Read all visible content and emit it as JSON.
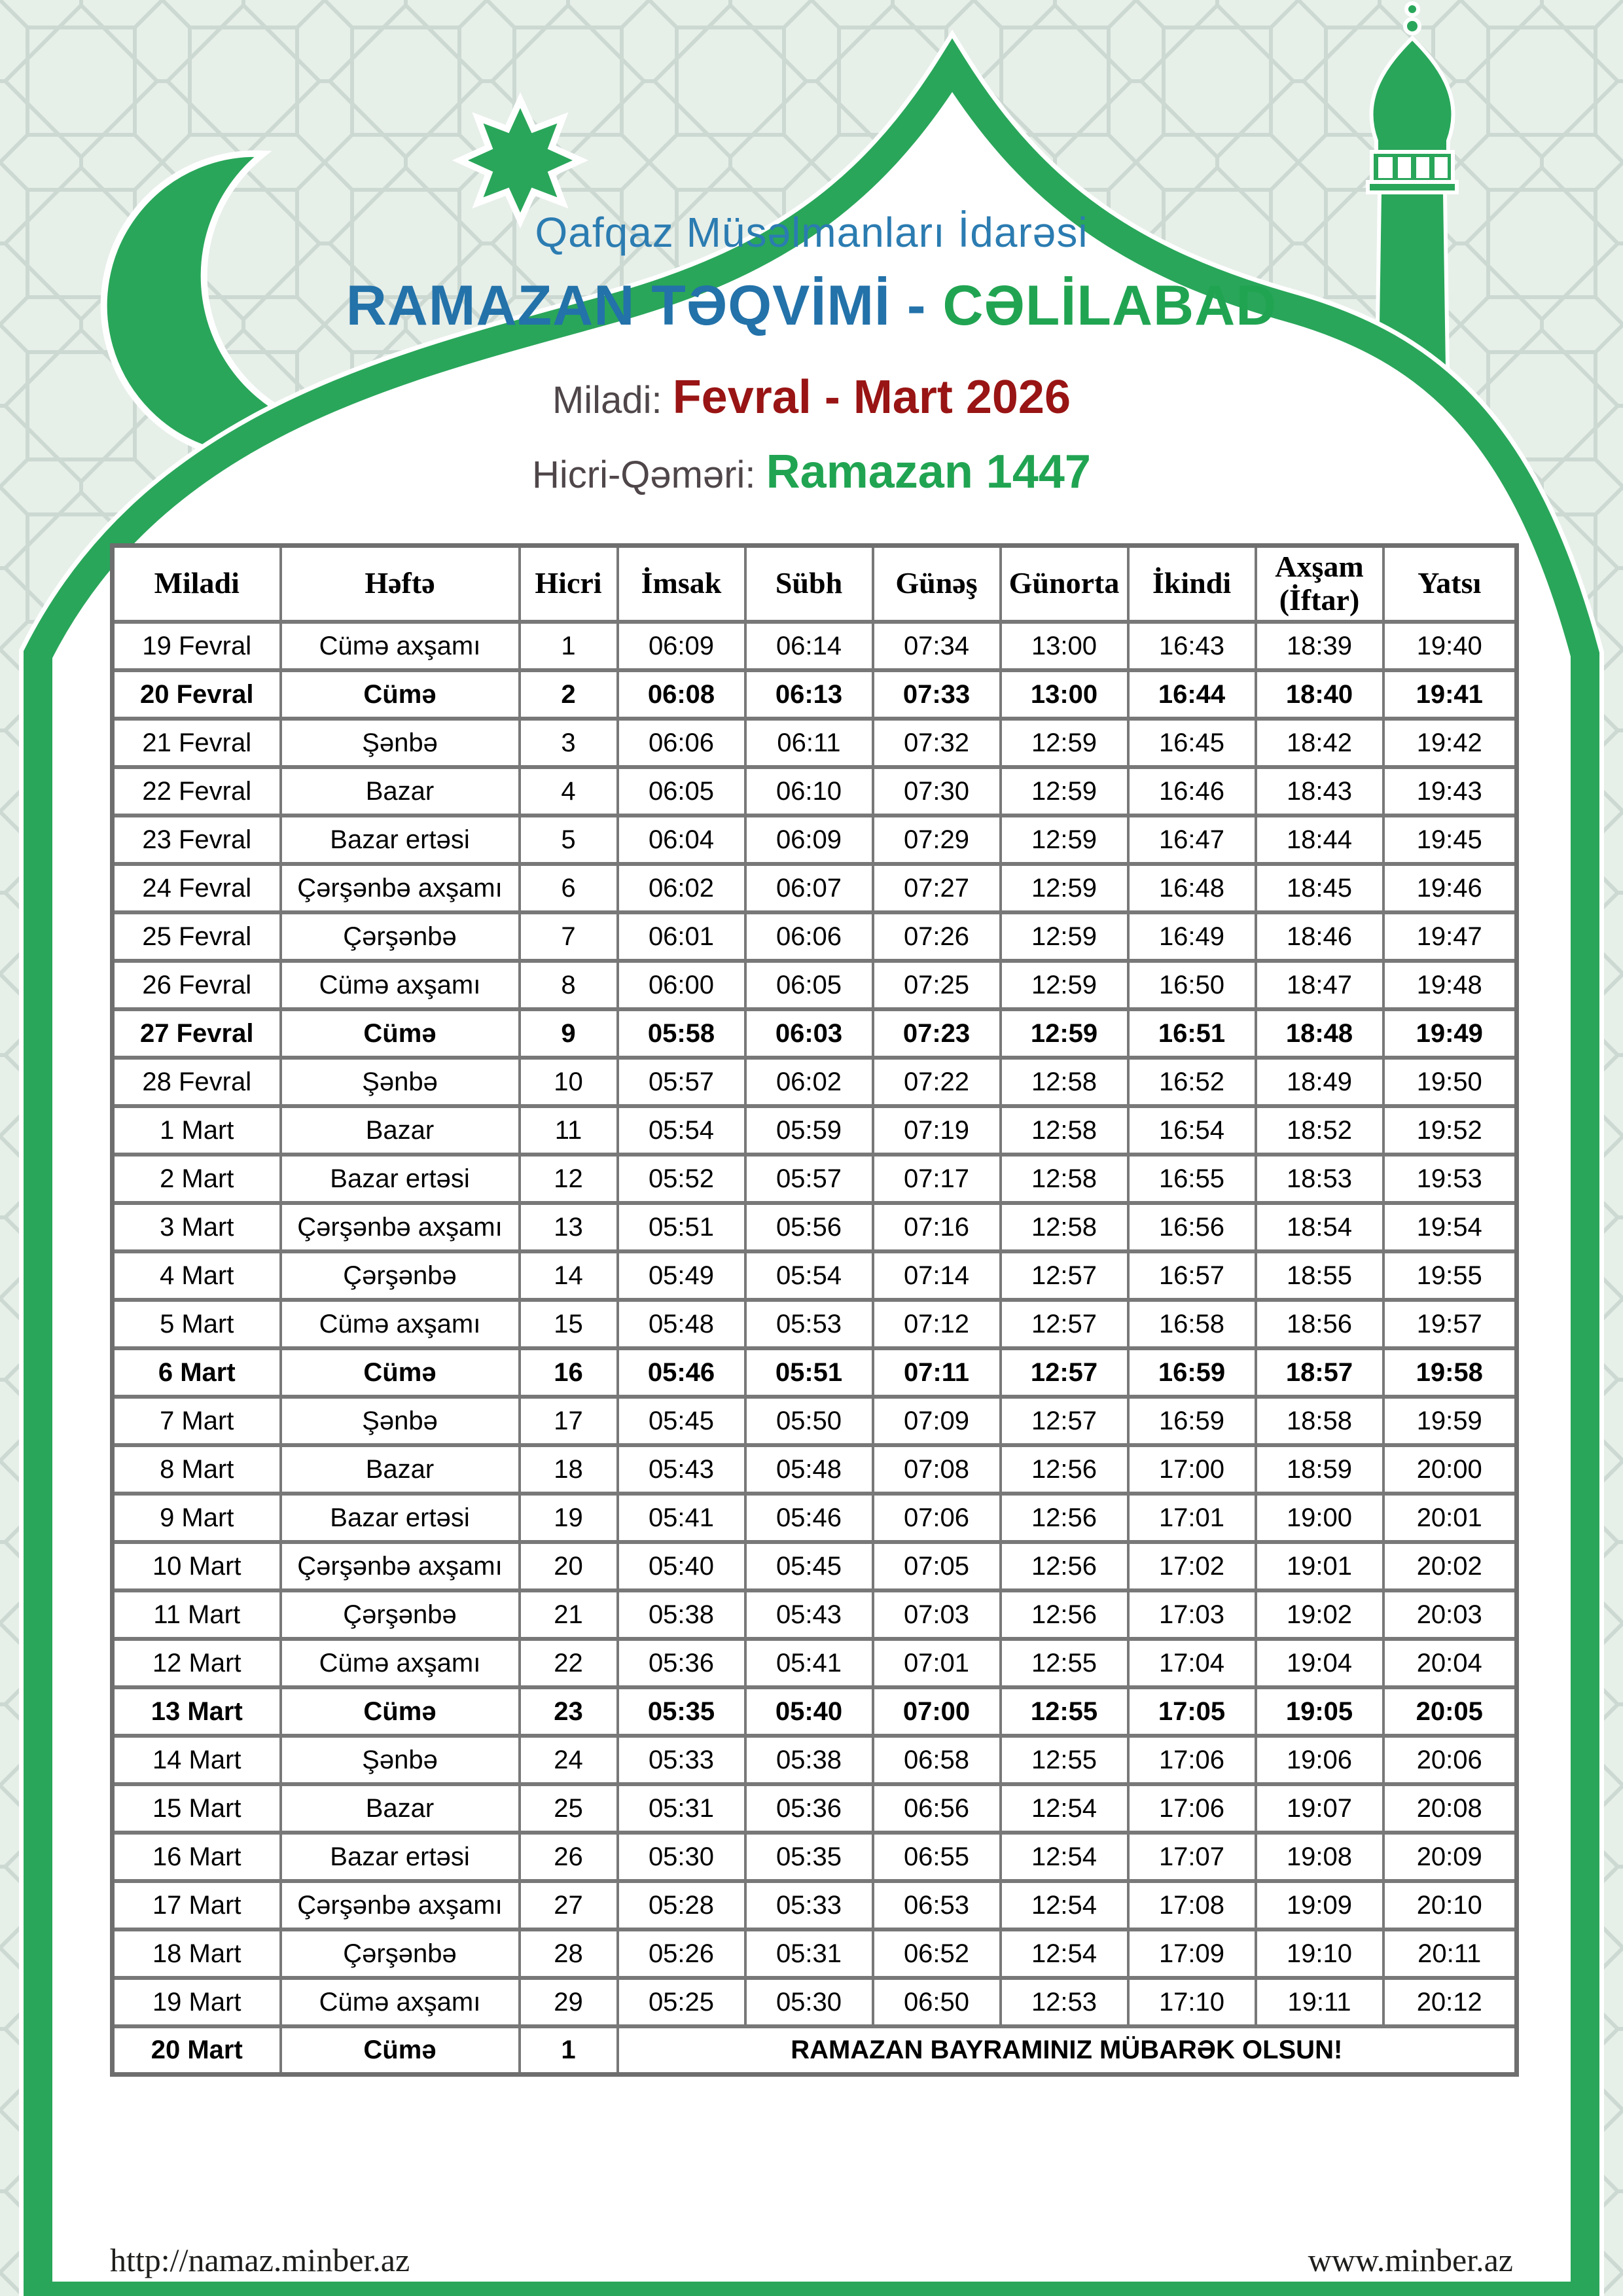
{
  "header": {
    "org": "Qafqaz Müsəlmanları İdarəsi",
    "title_main": "RAMAZAN TƏQVİMİ - ",
    "title_city": "CƏLİLABAD",
    "miladi_label": "Miladi: ",
    "miladi_value": "Fevral - Mart 2026",
    "hicri_label": "Hicri-Qəməri: ",
    "hicri_value": "Ramazan 1447"
  },
  "colors": {
    "accent_green": "#29a65a",
    "row_green": "#9cf49c",
    "row_red": "#f69492",
    "title_blue": "#2372a9",
    "org_blue": "#2b7cb1",
    "date_red": "#991414",
    "label_gray": "#4f464a",
    "table_border_gray": "#787878",
    "pattern_background": "#e7efe9",
    "pattern_lines": "#ccd9d2"
  },
  "decorations": {
    "crescent_icon": "crescent-moon",
    "star_icon": "eight-point-star",
    "minaret_icon": "mosque-minaret",
    "arch": "mosque-dome-arch"
  },
  "table": {
    "columns": [
      "Miladi",
      "Həftə",
      "Hicri",
      "İmsak",
      "Sübh",
      "Günəş",
      "Günorta",
      "İkindi",
      "Axşam\n(İftar)",
      "Yatsı"
    ],
    "rows": [
      {
        "miladi": "19 Fevral",
        "weekday": "Cümə axşamı",
        "hicri": "1",
        "imsak": "06:09",
        "subh": "06:14",
        "gunes": "07:34",
        "gunorta": "13:00",
        "ikindi": "16:43",
        "aksam": "18:39",
        "yatsi": "19:40",
        "highlight": "none"
      },
      {
        "miladi": "20 Fevral",
        "weekday": "Cümə",
        "hicri": "2",
        "imsak": "06:08",
        "subh": "06:13",
        "gunes": "07:33",
        "gunorta": "13:00",
        "ikindi": "16:44",
        "aksam": "18:40",
        "yatsi": "19:41",
        "highlight": "friday"
      },
      {
        "miladi": "21 Fevral",
        "weekday": "Şənbə",
        "hicri": "3",
        "imsak": "06:06",
        "subh": "06:11",
        "gunes": "07:32",
        "gunorta": "12:59",
        "ikindi": "16:45",
        "aksam": "18:42",
        "yatsi": "19:42",
        "highlight": "none"
      },
      {
        "miladi": "22 Fevral",
        "weekday": "Bazar",
        "hicri": "4",
        "imsak": "06:05",
        "subh": "06:10",
        "gunes": "07:30",
        "gunorta": "12:59",
        "ikindi": "16:46",
        "aksam": "18:43",
        "yatsi": "19:43",
        "highlight": "sunday"
      },
      {
        "miladi": "23 Fevral",
        "weekday": "Bazar ertəsi",
        "hicri": "5",
        "imsak": "06:04",
        "subh": "06:09",
        "gunes": "07:29",
        "gunorta": "12:59",
        "ikindi": "16:47",
        "aksam": "18:44",
        "yatsi": "19:45",
        "highlight": "none"
      },
      {
        "miladi": "24 Fevral",
        "weekday": "Çərşənbə axşamı",
        "hicri": "6",
        "imsak": "06:02",
        "subh": "06:07",
        "gunes": "07:27",
        "gunorta": "12:59",
        "ikindi": "16:48",
        "aksam": "18:45",
        "yatsi": "19:46",
        "highlight": "none"
      },
      {
        "miladi": "25 Fevral",
        "weekday": "Çərşənbə",
        "hicri": "7",
        "imsak": "06:01",
        "subh": "06:06",
        "gunes": "07:26",
        "gunorta": "12:59",
        "ikindi": "16:49",
        "aksam": "18:46",
        "yatsi": "19:47",
        "highlight": "none"
      },
      {
        "miladi": "26 Fevral",
        "weekday": "Cümə axşamı",
        "hicri": "8",
        "imsak": "06:00",
        "subh": "06:05",
        "gunes": "07:25",
        "gunorta": "12:59",
        "ikindi": "16:50",
        "aksam": "18:47",
        "yatsi": "19:48",
        "highlight": "none"
      },
      {
        "miladi": "27 Fevral",
        "weekday": "Cümə",
        "hicri": "9",
        "imsak": "05:58",
        "subh": "06:03",
        "gunes": "07:23",
        "gunorta": "12:59",
        "ikindi": "16:51",
        "aksam": "18:48",
        "yatsi": "19:49",
        "highlight": "friday"
      },
      {
        "miladi": "28 Fevral",
        "weekday": "Şənbə",
        "hicri": "10",
        "imsak": "05:57",
        "subh": "06:02",
        "gunes": "07:22",
        "gunorta": "12:58",
        "ikindi": "16:52",
        "aksam": "18:49",
        "yatsi": "19:50",
        "highlight": "none"
      },
      {
        "miladi": "1 Mart",
        "weekday": "Bazar",
        "hicri": "11",
        "imsak": "05:54",
        "subh": "05:59",
        "gunes": "07:19",
        "gunorta": "12:58",
        "ikindi": "16:54",
        "aksam": "18:52",
        "yatsi": "19:52",
        "highlight": "sunday"
      },
      {
        "miladi": "2 Mart",
        "weekday": "Bazar ertəsi",
        "hicri": "12",
        "imsak": "05:52",
        "subh": "05:57",
        "gunes": "07:17",
        "gunorta": "12:58",
        "ikindi": "16:55",
        "aksam": "18:53",
        "yatsi": "19:53",
        "highlight": "none"
      },
      {
        "miladi": "3 Mart",
        "weekday": "Çərşənbə axşamı",
        "hicri": "13",
        "imsak": "05:51",
        "subh": "05:56",
        "gunes": "07:16",
        "gunorta": "12:58",
        "ikindi": "16:56",
        "aksam": "18:54",
        "yatsi": "19:54",
        "highlight": "none"
      },
      {
        "miladi": "4 Mart",
        "weekday": "Çərşənbə",
        "hicri": "14",
        "imsak": "05:49",
        "subh": "05:54",
        "gunes": "07:14",
        "gunorta": "12:57",
        "ikindi": "16:57",
        "aksam": "18:55",
        "yatsi": "19:55",
        "highlight": "none"
      },
      {
        "miladi": "5 Mart",
        "weekday": "Cümə axşamı",
        "hicri": "15",
        "imsak": "05:48",
        "subh": "05:53",
        "gunes": "07:12",
        "gunorta": "12:57",
        "ikindi": "16:58",
        "aksam": "18:56",
        "yatsi": "19:57",
        "highlight": "none"
      },
      {
        "miladi": "6 Mart",
        "weekday": "Cümə",
        "hicri": "16",
        "imsak": "05:46",
        "subh": "05:51",
        "gunes": "07:11",
        "gunorta": "12:57",
        "ikindi": "16:59",
        "aksam": "18:57",
        "yatsi": "19:58",
        "highlight": "friday"
      },
      {
        "miladi": "7 Mart",
        "weekday": "Şənbə",
        "hicri": "17",
        "imsak": "05:45",
        "subh": "05:50",
        "gunes": "07:09",
        "gunorta": "12:57",
        "ikindi": "16:59",
        "aksam": "18:58",
        "yatsi": "19:59",
        "highlight": "none"
      },
      {
        "miladi": "8 Mart",
        "weekday": "Bazar",
        "hicri": "18",
        "imsak": "05:43",
        "subh": "05:48",
        "gunes": "07:08",
        "gunorta": "12:56",
        "ikindi": "17:00",
        "aksam": "18:59",
        "yatsi": "20:00",
        "highlight": "sunday"
      },
      {
        "miladi": "9 Mart",
        "weekday": "Bazar ertəsi",
        "hicri": "19",
        "imsak": "05:41",
        "subh": "05:46",
        "gunes": "07:06",
        "gunorta": "12:56",
        "ikindi": "17:01",
        "aksam": "19:00",
        "yatsi": "20:01",
        "highlight": "none"
      },
      {
        "miladi": "10 Mart",
        "weekday": "Çərşənbə axşamı",
        "hicri": "20",
        "imsak": "05:40",
        "subh": "05:45",
        "gunes": "07:05",
        "gunorta": "12:56",
        "ikindi": "17:02",
        "aksam": "19:01",
        "yatsi": "20:02",
        "highlight": "none"
      },
      {
        "miladi": "11 Mart",
        "weekday": "Çərşənbə",
        "hicri": "21",
        "imsak": "05:38",
        "subh": "05:43",
        "gunes": "07:03",
        "gunorta": "12:56",
        "ikindi": "17:03",
        "aksam": "19:02",
        "yatsi": "20:03",
        "highlight": "none"
      },
      {
        "miladi": "12 Mart",
        "weekday": "Cümə axşamı",
        "hicri": "22",
        "imsak": "05:36",
        "subh": "05:41",
        "gunes": "07:01",
        "gunorta": "12:55",
        "ikindi": "17:04",
        "aksam": "19:04",
        "yatsi": "20:04",
        "highlight": "none"
      },
      {
        "miladi": "13 Mart",
        "weekday": "Cümə",
        "hicri": "23",
        "imsak": "05:35",
        "subh": "05:40",
        "gunes": "07:00",
        "gunorta": "12:55",
        "ikindi": "17:05",
        "aksam": "19:05",
        "yatsi": "20:05",
        "highlight": "friday"
      },
      {
        "miladi": "14 Mart",
        "weekday": "Şənbə",
        "hicri": "24",
        "imsak": "05:33",
        "subh": "05:38",
        "gunes": "06:58",
        "gunorta": "12:55",
        "ikindi": "17:06",
        "aksam": "19:06",
        "yatsi": "20:06",
        "highlight": "none"
      },
      {
        "miladi": "15 Mart",
        "weekday": "Bazar",
        "hicri": "25",
        "imsak": "05:31",
        "subh": "05:36",
        "gunes": "06:56",
        "gunorta": "12:54",
        "ikindi": "17:06",
        "aksam": "19:07",
        "yatsi": "20:08",
        "highlight": "sunday"
      },
      {
        "miladi": "16 Mart",
        "weekday": "Bazar ertəsi",
        "hicri": "26",
        "imsak": "05:30",
        "subh": "05:35",
        "gunes": "06:55",
        "gunorta": "12:54",
        "ikindi": "17:07",
        "aksam": "19:08",
        "yatsi": "20:09",
        "highlight": "none"
      },
      {
        "miladi": "17 Mart",
        "weekday": "Çərşənbə axşamı",
        "hicri": "27",
        "imsak": "05:28",
        "subh": "05:33",
        "gunes": "06:53",
        "gunorta": "12:54",
        "ikindi": "17:08",
        "aksam": "19:09",
        "yatsi": "20:10",
        "highlight": "none"
      },
      {
        "miladi": "18 Mart",
        "weekday": "Çərşənbə",
        "hicri": "28",
        "imsak": "05:26",
        "subh": "05:31",
        "gunes": "06:52",
        "gunorta": "12:54",
        "ikindi": "17:09",
        "aksam": "19:10",
        "yatsi": "20:11",
        "highlight": "none"
      },
      {
        "miladi": "19 Mart",
        "weekday": "Cümə axşamı",
        "hicri": "29",
        "imsak": "05:25",
        "subh": "05:30",
        "gunes": "06:50",
        "gunorta": "12:53",
        "ikindi": "17:10",
        "aksam": "19:11",
        "yatsi": "20:12",
        "highlight": "none"
      }
    ],
    "final_row": {
      "miladi": "20 Mart",
      "weekday": "Cümə",
      "hicri": "1",
      "message": "RAMAZAN BAYRAMINIZ MÜBARƏK OLSUN!"
    }
  },
  "footer": {
    "left": "http://namaz.minber.az",
    "right": "www.minber.az"
  }
}
